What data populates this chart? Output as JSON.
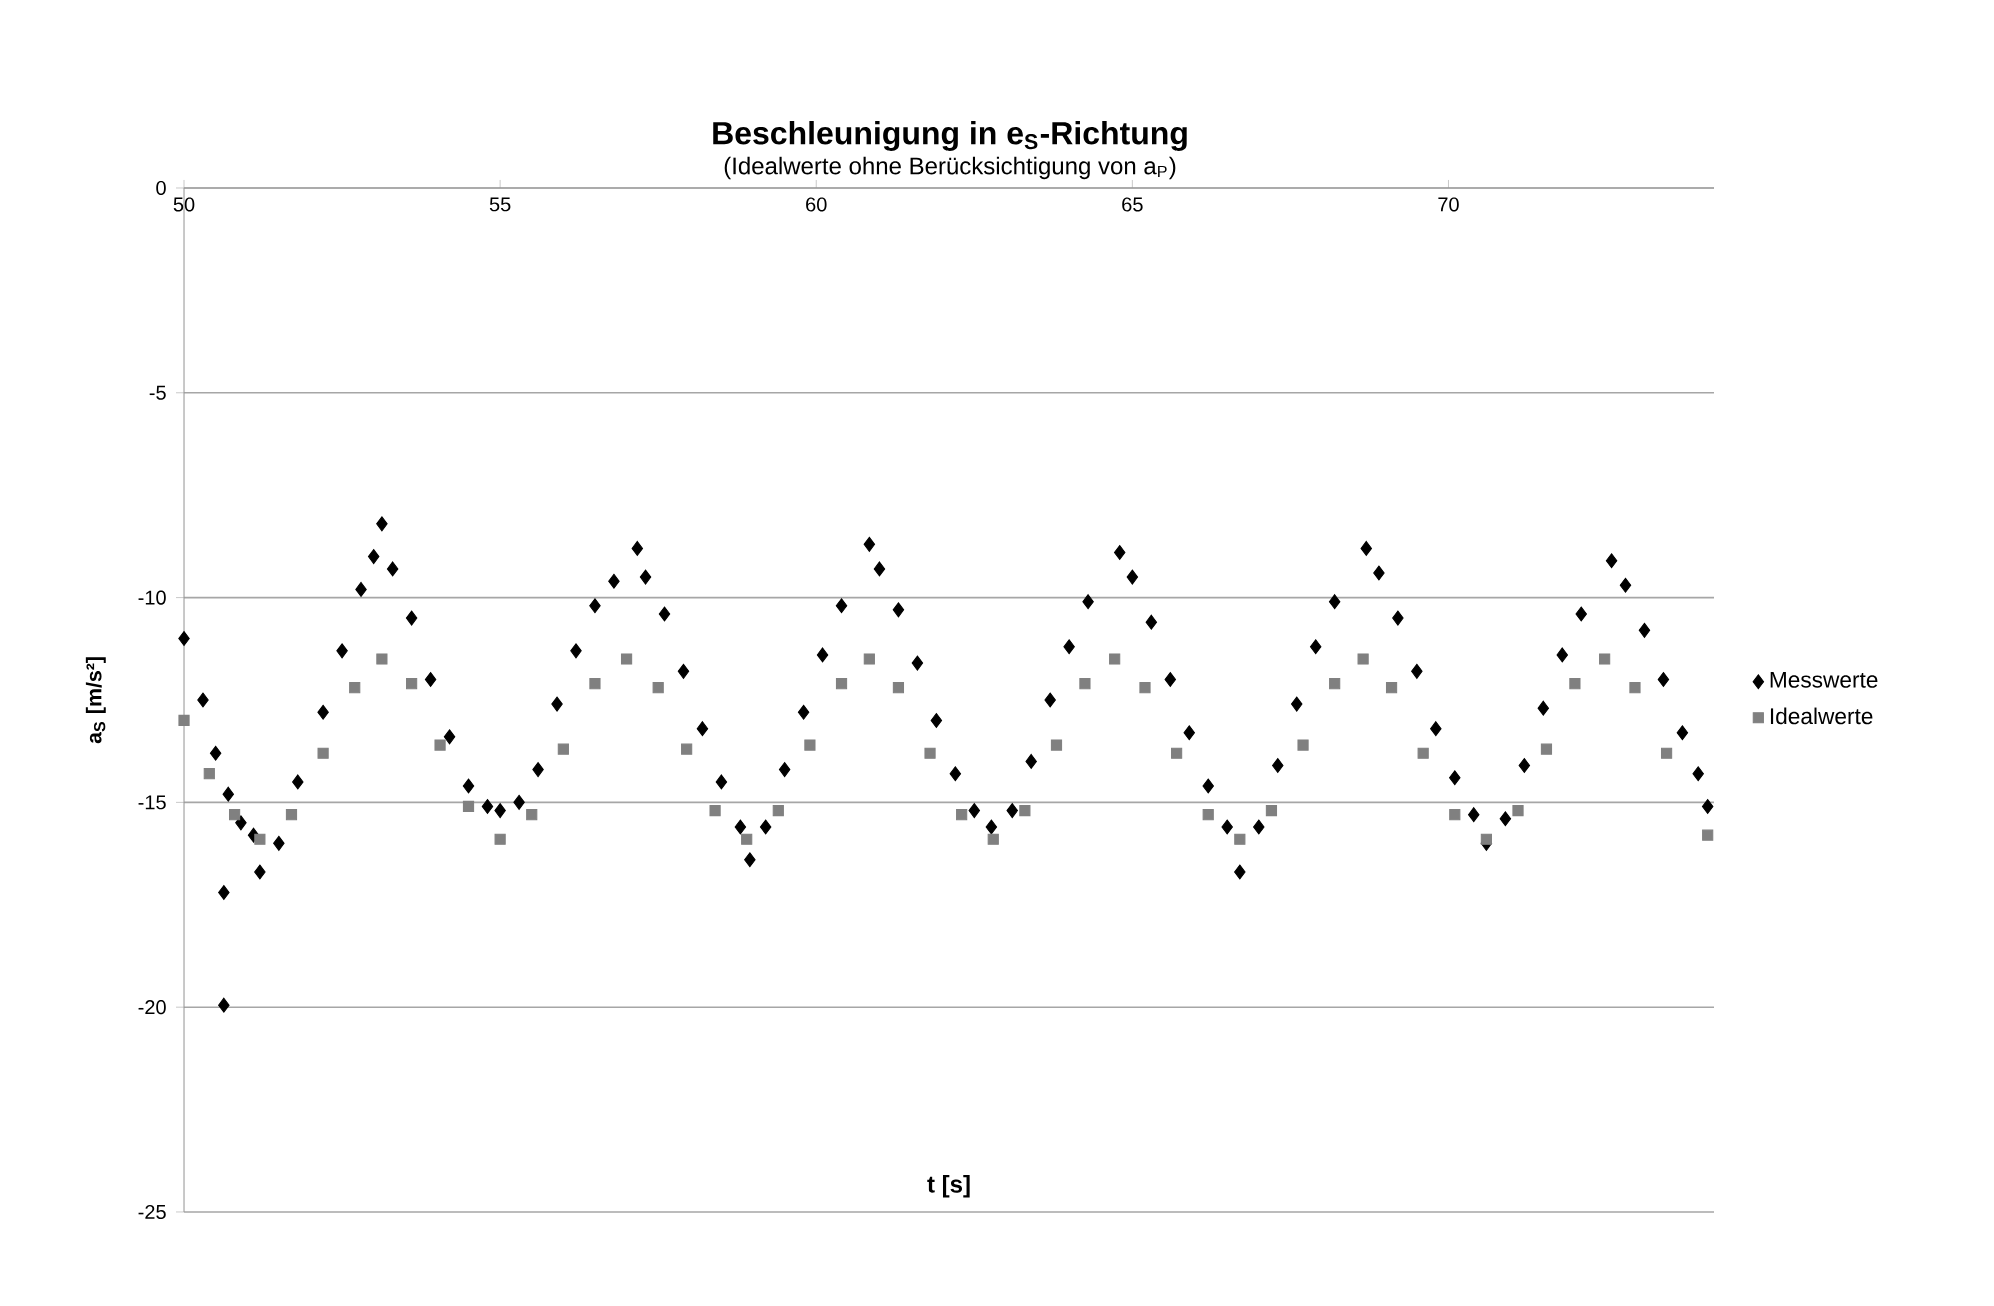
{
  "chart_data": {
    "type": "scatter",
    "title": "Beschleunigung in e$_{S}$-Richtung",
    "subtitle": "(Idealwerte ohne Berücksichtigung von a$_{P}$)",
    "xlabel": "t [s]",
    "ylabel": "a$_{S}$ [m/s²]",
    "xlim": [
      50,
      74.2
    ],
    "ylim": [
      -25,
      0
    ],
    "xticks": [
      50,
      55,
      60,
      65,
      70
    ],
    "yticks": [
      -25,
      -20,
      -15,
      -10,
      -5,
      0
    ],
    "grid": "y",
    "legend": "right",
    "series": [
      {
        "name": "Messwerte",
        "color": "#000000",
        "marker": "diamond",
        "x": [
          50.0,
          50.3,
          50.5,
          50.7,
          50.63,
          50.63,
          50.9,
          51.2,
          51.1,
          51.5,
          51.8,
          52.2,
          52.5,
          52.8,
          53.0,
          53.13,
          53.3,
          53.6,
          53.9,
          54.2,
          54.5,
          54.8,
          55.0,
          55.3,
          55.6,
          55.9,
          56.2,
          56.5,
          56.8,
          57.17,
          57.3,
          57.6,
          57.9,
          58.2,
          58.5,
          58.8,
          58.95,
          59.2,
          59.5,
          59.8,
          60.1,
          60.4,
          60.84,
          61.0,
          61.3,
          61.6,
          61.9,
          62.2,
          62.5,
          62.77,
          63.1,
          63.4,
          63.7,
          64.0,
          64.3,
          64.8,
          65.0,
          65.3,
          65.6,
          65.9,
          66.2,
          66.5,
          66.7,
          67.0,
          67.3,
          67.6,
          67.9,
          68.2,
          68.7,
          68.9,
          69.2,
          69.5,
          69.8,
          70.1,
          70.4,
          70.6,
          70.9,
          71.2,
          71.5,
          71.8,
          72.1,
          72.58,
          72.8,
          73.1,
          73.4,
          73.7,
          73.95,
          74.1
        ],
        "values": [
          -11.0,
          -12.5,
          -13.8,
          -14.8,
          -17.2,
          -19.95,
          -15.5,
          -16.7,
          -15.8,
          -16.0,
          -14.5,
          -12.8,
          -11.3,
          -9.8,
          -9.0,
          -8.2,
          -9.3,
          -10.5,
          -12.0,
          -13.4,
          -14.6,
          -15.1,
          -15.2,
          -15.0,
          -14.2,
          -12.6,
          -11.3,
          -10.2,
          -9.6,
          -8.8,
          -9.5,
          -10.4,
          -11.8,
          -13.2,
          -14.5,
          -15.6,
          -16.4,
          -15.6,
          -14.2,
          -12.8,
          -11.4,
          -10.2,
          -8.7,
          -9.3,
          -10.3,
          -11.6,
          -13.0,
          -14.3,
          -15.2,
          -15.6,
          -15.2,
          -14.0,
          -12.5,
          -11.2,
          -10.1,
          -8.9,
          -9.5,
          -10.6,
          -12.0,
          -13.3,
          -14.6,
          -15.6,
          -16.7,
          -15.6,
          -14.1,
          -12.6,
          -11.2,
          -10.1,
          -8.8,
          -9.4,
          -10.5,
          -11.8,
          -13.2,
          -14.4,
          -15.3,
          -16.0,
          -15.4,
          -14.1,
          -12.7,
          -11.4,
          -10.4,
          -9.1,
          -9.7,
          -10.8,
          -12.0,
          -13.3,
          -14.3,
          -15.1
        ]
      },
      {
        "name": "Idealwerte",
        "color": "#808080",
        "marker": "square",
        "x": [
          50.0,
          50.4,
          50.8,
          51.2,
          51.7,
          52.2,
          52.7,
          53.13,
          53.6,
          54.05,
          54.5,
          55.0,
          55.5,
          56.0,
          56.5,
          57.0,
          57.5,
          57.95,
          58.4,
          58.9,
          59.4,
          59.9,
          60.4,
          60.84,
          61.3,
          61.8,
          62.3,
          62.8,
          63.3,
          63.8,
          64.25,
          64.72,
          65.2,
          65.7,
          66.2,
          66.7,
          67.2,
          67.7,
          68.2,
          68.65,
          69.1,
          69.6,
          70.1,
          70.6,
          71.1,
          71.55,
          72.0,
          72.47,
          72.95,
          73.45,
          74.1
        ],
        "values": [
          -13.0,
          -14.3,
          -15.3,
          -15.9,
          -15.3,
          -13.8,
          -12.2,
          -11.5,
          -12.1,
          -13.6,
          -15.1,
          -15.9,
          -15.3,
          -13.7,
          -12.1,
          -11.5,
          -12.2,
          -13.7,
          -15.2,
          -15.9,
          -15.2,
          -13.6,
          -12.1,
          -11.5,
          -12.2,
          -13.8,
          -15.3,
          -15.9,
          -15.2,
          -13.6,
          -12.1,
          -11.5,
          -12.2,
          -13.8,
          -15.3,
          -15.9,
          -15.2,
          -13.6,
          -12.1,
          -11.5,
          -12.2,
          -13.8,
          -15.3,
          -15.9,
          -15.2,
          -13.7,
          -12.1,
          -11.5,
          -12.2,
          -13.8,
          -15.8
        ]
      }
    ]
  }
}
